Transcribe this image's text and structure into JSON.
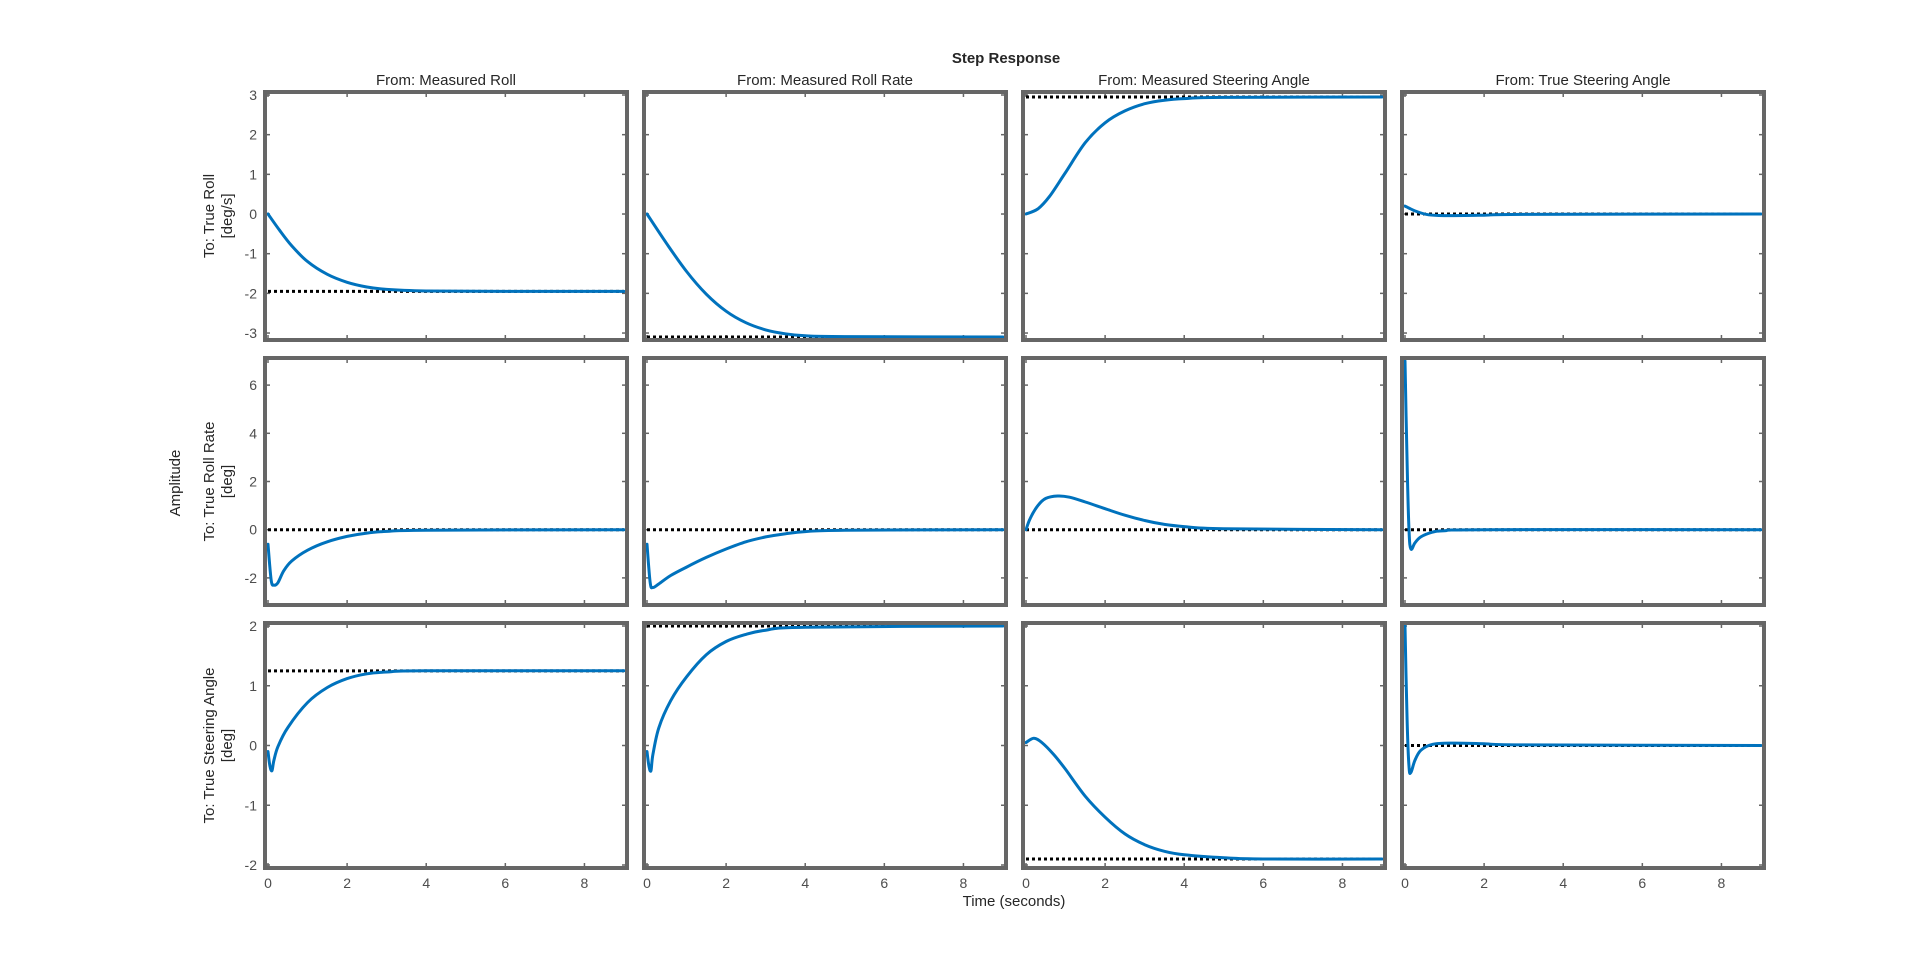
{
  "chart_data": {
    "type": "line",
    "title": "Step Response",
    "xlabel": "Time (seconds)",
    "ylabel": "Amplitude",
    "xlim": [
      0,
      9
    ],
    "xticks": [
      0,
      2,
      4,
      6,
      8
    ],
    "grid": false,
    "colors": {
      "response": "#0072BD",
      "steady_state": "#000000",
      "frame": "#666666"
    },
    "columns": [
      "From: Measured Roll",
      "From: Measured Roll Rate",
      "From: Measured Steering Angle",
      "From: True Steering Angle"
    ],
    "rows": [
      {
        "label": [
          "To: True Roll",
          "[deg/s]"
        ],
        "ylim": [
          -3.1,
          3
        ],
        "yticks": [
          -3,
          -2,
          -1,
          0,
          1,
          2,
          3
        ]
      },
      {
        "label": [
          "To: True Roll Rate",
          "[deg]"
        ],
        "ylim": [
          -3,
          7
        ],
        "yticks": [
          -2,
          0,
          2,
          4,
          6
        ]
      },
      {
        "label": [
          "To: True Steering Angle",
          "[deg]"
        ],
        "ylim": [
          -2,
          2
        ],
        "yticks": [
          -2,
          -1,
          0,
          1,
          2
        ]
      }
    ],
    "panels": [
      [
        {
          "final": -1.95,
          "points": [
            [
              0,
              0
            ],
            [
              0.3,
              -0.42
            ],
            [
              0.6,
              -0.8
            ],
            [
              1,
              -1.2
            ],
            [
              1.5,
              -1.52
            ],
            [
              2,
              -1.72
            ],
            [
              2.5,
              -1.84
            ],
            [
              3,
              -1.9
            ],
            [
              4,
              -1.94
            ],
            [
              6,
              -1.95
            ],
            [
              9,
              -1.95
            ]
          ]
        },
        {
          "final": -3.1,
          "points": [
            [
              0,
              0
            ],
            [
              0.5,
              -0.75
            ],
            [
              1,
              -1.45
            ],
            [
              1.5,
              -2.02
            ],
            [
              2,
              -2.45
            ],
            [
              2.5,
              -2.74
            ],
            [
              3,
              -2.92
            ],
            [
              3.5,
              -3.02
            ],
            [
              4,
              -3.07
            ],
            [
              5,
              -3.09
            ],
            [
              9,
              -3.1
            ]
          ]
        },
        {
          "final": 2.95,
          "points": [
            [
              0,
              0
            ],
            [
              0.3,
              0.13
            ],
            [
              0.6,
              0.45
            ],
            [
              1,
              1.05
            ],
            [
              1.5,
              1.8
            ],
            [
              2,
              2.3
            ],
            [
              2.5,
              2.6
            ],
            [
              3,
              2.78
            ],
            [
              3.5,
              2.87
            ],
            [
              4,
              2.91
            ],
            [
              5,
              2.94
            ],
            [
              9,
              2.95
            ]
          ]
        },
        {
          "final": 0,
          "points": [
            [
              0,
              0.2
            ],
            [
              0.1,
              0.15
            ],
            [
              0.3,
              0.06
            ],
            [
              0.6,
              -0.02
            ],
            [
              1,
              -0.04
            ],
            [
              2,
              -0.03
            ],
            [
              3,
              -0.01
            ],
            [
              9,
              0
            ]
          ]
        }
      ],
      [
        {
          "final": 0,
          "points": [
            [
              0,
              -0.6
            ],
            [
              0.08,
              -2.1
            ],
            [
              0.15,
              -2.3
            ],
            [
              0.25,
              -2.2
            ],
            [
              0.4,
              -1.7
            ],
            [
              0.6,
              -1.3
            ],
            [
              1,
              -0.85
            ],
            [
              1.5,
              -0.5
            ],
            [
              2,
              -0.28
            ],
            [
              2.5,
              -0.14
            ],
            [
              3,
              -0.07
            ],
            [
              4,
              -0.02
            ],
            [
              9,
              0
            ]
          ]
        },
        {
          "final": 0,
          "points": [
            [
              0,
              -0.6
            ],
            [
              0.08,
              -2.2
            ],
            [
              0.15,
              -2.4
            ],
            [
              0.3,
              -2.25
            ],
            [
              0.6,
              -1.9
            ],
            [
              1,
              -1.55
            ],
            [
              1.5,
              -1.15
            ],
            [
              2,
              -0.8
            ],
            [
              2.5,
              -0.5
            ],
            [
              3,
              -0.3
            ],
            [
              3.5,
              -0.17
            ],
            [
              4,
              -0.08
            ],
            [
              5,
              -0.02
            ],
            [
              9,
              0
            ]
          ]
        },
        {
          "final": 0,
          "points": [
            [
              0,
              0
            ],
            [
              0.1,
              0.45
            ],
            [
              0.3,
              1.0
            ],
            [
              0.5,
              1.3
            ],
            [
              0.8,
              1.4
            ],
            [
              1.1,
              1.35
            ],
            [
              1.5,
              1.15
            ],
            [
              2,
              0.87
            ],
            [
              2.5,
              0.6
            ],
            [
              3,
              0.38
            ],
            [
              3.5,
              0.22
            ],
            [
              4,
              0.13
            ],
            [
              5,
              0.04
            ],
            [
              9,
              0
            ]
          ]
        },
        {
          "final": 0,
          "points": [
            [
              0,
              7
            ],
            [
              0.05,
              3
            ],
            [
              0.1,
              0
            ],
            [
              0.15,
              -0.8
            ],
            [
              0.25,
              -0.55
            ],
            [
              0.4,
              -0.3
            ],
            [
              0.7,
              -0.1
            ],
            [
              1,
              -0.04
            ],
            [
              2,
              0
            ],
            [
              9,
              0
            ]
          ]
        }
      ],
      [
        {
          "final": 1.25,
          "points": [
            [
              0,
              -0.1
            ],
            [
              0.05,
              -0.35
            ],
            [
              0.1,
              -0.42
            ],
            [
              0.15,
              -0.25
            ],
            [
              0.25,
              -0.02
            ],
            [
              0.5,
              0.3
            ],
            [
              1,
              0.72
            ],
            [
              1.5,
              0.97
            ],
            [
              2,
              1.12
            ],
            [
              2.5,
              1.2
            ],
            [
              3,
              1.23
            ],
            [
              4,
              1.25
            ],
            [
              9,
              1.25
            ]
          ]
        },
        {
          "final": 2,
          "points": [
            [
              0,
              -0.1
            ],
            [
              0.05,
              -0.35
            ],
            [
              0.1,
              -0.42
            ],
            [
              0.15,
              -0.15
            ],
            [
              0.3,
              0.3
            ],
            [
              0.6,
              0.75
            ],
            [
              1,
              1.15
            ],
            [
              1.5,
              1.52
            ],
            [
              2,
              1.74
            ],
            [
              2.5,
              1.86
            ],
            [
              3,
              1.93
            ],
            [
              4,
              1.98
            ],
            [
              9,
              2
            ]
          ]
        },
        {
          "final": -1.9,
          "points": [
            [
              0,
              0.05
            ],
            [
              0.2,
              0.12
            ],
            [
              0.4,
              0.05
            ],
            [
              0.7,
              -0.15
            ],
            [
              1,
              -0.4
            ],
            [
              1.5,
              -0.85
            ],
            [
              2,
              -1.2
            ],
            [
              2.5,
              -1.48
            ],
            [
              3,
              -1.66
            ],
            [
              3.5,
              -1.77
            ],
            [
              4,
              -1.83
            ],
            [
              5,
              -1.88
            ],
            [
              6,
              -1.9
            ],
            [
              9,
              -1.9
            ]
          ]
        },
        {
          "final": 0,
          "points": [
            [
              0,
              2
            ],
            [
              0.05,
              0.5
            ],
            [
              0.1,
              -0.35
            ],
            [
              0.15,
              -0.45
            ],
            [
              0.25,
              -0.25
            ],
            [
              0.4,
              -0.08
            ],
            [
              0.7,
              0.02
            ],
            [
              1.2,
              0.04
            ],
            [
              2,
              0.03
            ],
            [
              3,
              0.01
            ],
            [
              9,
              0
            ]
          ]
        }
      ]
    ]
  }
}
